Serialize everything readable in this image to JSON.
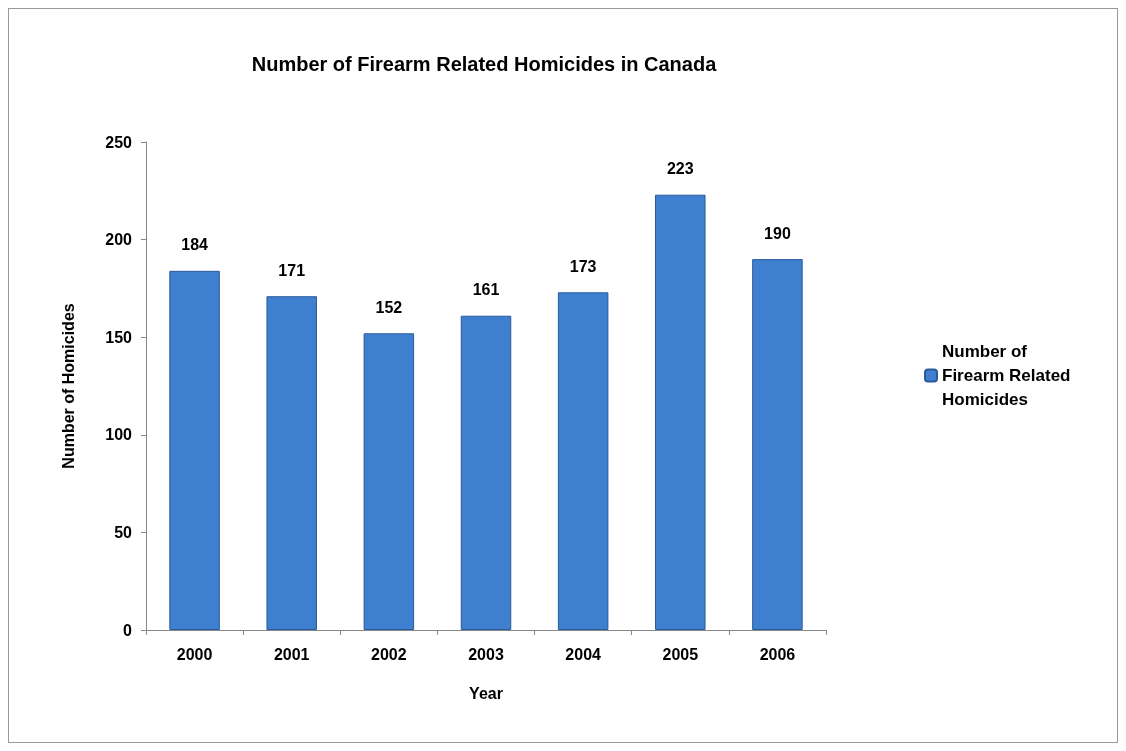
{
  "chart_data": {
    "type": "bar",
    "title": "Number of Firearm Related Homicides in Canada",
    "xlabel": "Year",
    "ylabel": "Number of Homicides",
    "categories": [
      "2000",
      "2001",
      "2002",
      "2003",
      "2004",
      "2005",
      "2006"
    ],
    "series": [
      {
        "name": "Number of Firearm Related Homicides",
        "color": "#3f7fd0",
        "values": [
          184,
          171,
          152,
          161,
          173,
          223,
          190
        ]
      }
    ],
    "ylim": [
      0,
      250
    ],
    "yticks": [
      0,
      50,
      100,
      150,
      200,
      250
    ],
    "grid": false,
    "legend": "right",
    "data_labels": true
  }
}
